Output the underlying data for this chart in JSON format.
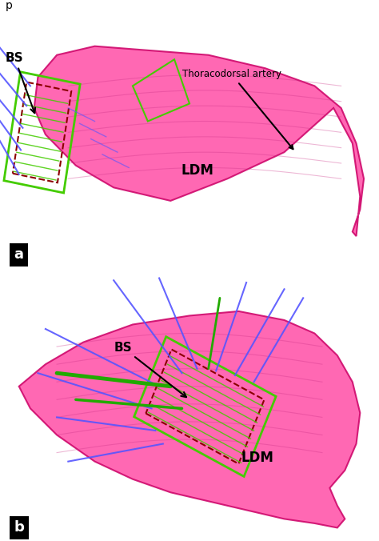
{
  "panel_bg": "#e8b87a",
  "muscle_color": "#ff4da6",
  "muscle_edge": "#cc0066",
  "muscle_alpha": 0.85,
  "green_rect_color": "#44cc00",
  "dashed_rect_color": "#8b0000",
  "blue_line_color": "#5555ff",
  "green_line_color": "#22aa00",
  "label_bs": "BS",
  "label_ldm": "LDM",
  "label_artery": "Thoracodorsal artery",
  "label_a": "a",
  "label_b": "b",
  "title_text": "p",
  "white_bg": "#ffffff",
  "fiber_color": "#cc3388",
  "muscle_alpha_fiber": 0.35
}
